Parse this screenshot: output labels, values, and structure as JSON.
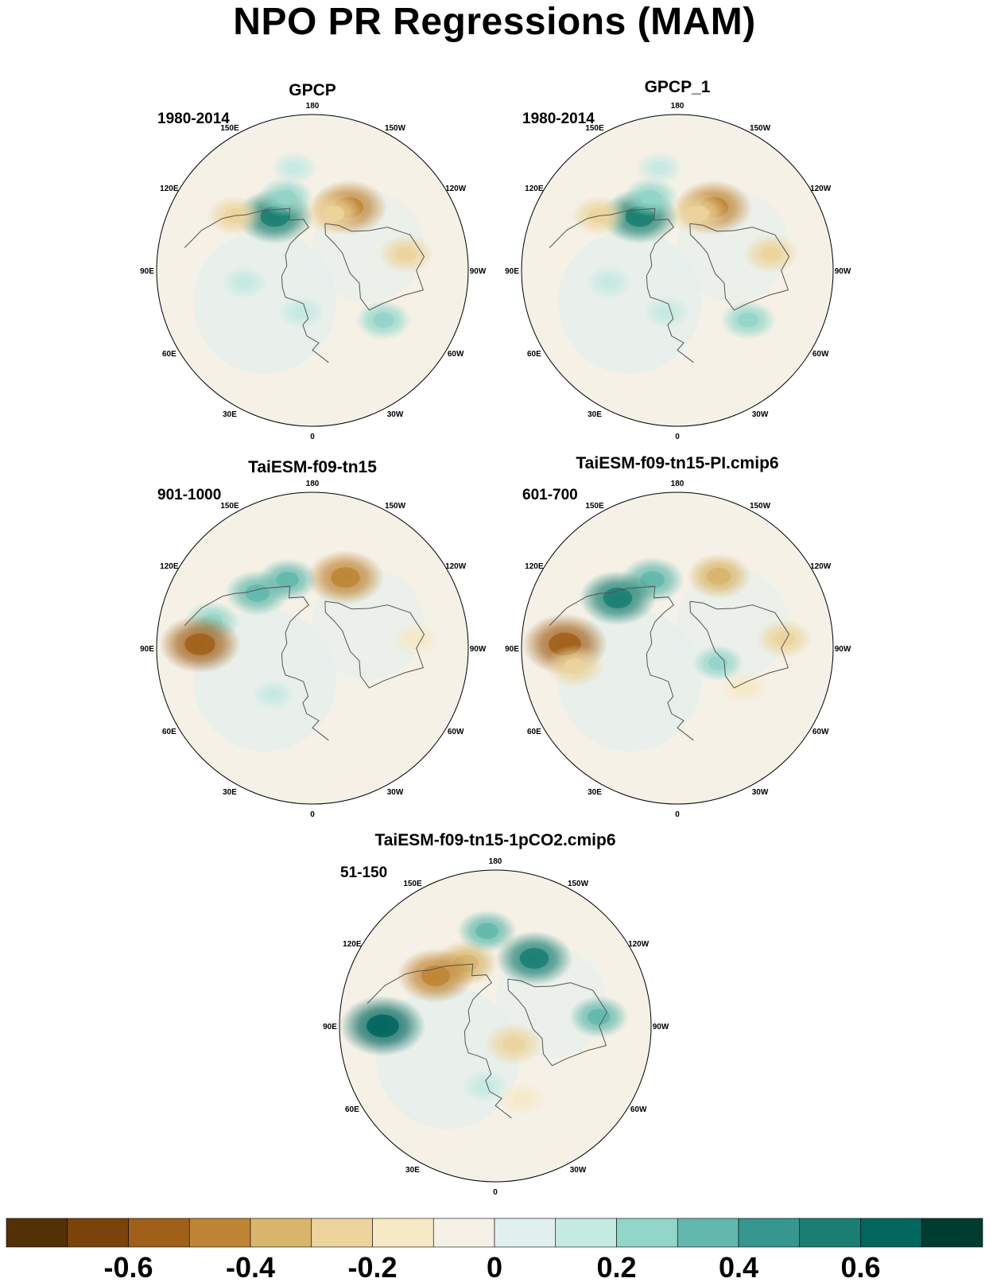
{
  "title": "NPO PR Regressions (MAM)",
  "chart_data": {
    "type": "heatmap",
    "projection": "north polar stereographic",
    "variable": "PR",
    "season": "MAM",
    "longitude_labels": [
      "180",
      "150E",
      "120E",
      "90E",
      "60E",
      "30E",
      "0",
      "30W",
      "60W",
      "90W",
      "120W",
      "150W"
    ],
    "panels": [
      {
        "title": "GPCP",
        "period": "1980-2014",
        "features": [
          {
            "lon": -150,
            "lat": 48,
            "value": -0.5
          },
          {
            "lon": -160,
            "lat": 55,
            "value": -0.3
          },
          {
            "lon": 145,
            "lat": 52,
            "value": 0.5
          },
          {
            "lon": 160,
            "lat": 45,
            "value": 0.25
          },
          {
            "lon": 170,
            "lat": 30,
            "value": 0.15
          },
          {
            "lon": 125,
            "lat": 35,
            "value": -0.25
          },
          {
            "lon": -100,
            "lat": 35,
            "value": -0.25
          },
          {
            "lon": -55,
            "lat": 40,
            "value": 0.25
          },
          {
            "lon": 15,
            "lat": 65,
            "value": 0.15
          },
          {
            "lon": 80,
            "lat": 50,
            "value": 0.15
          }
        ]
      },
      {
        "title": "GPCP_1",
        "period": "1980-2014",
        "features": [
          {
            "lon": -150,
            "lat": 48,
            "value": -0.5
          },
          {
            "lon": -160,
            "lat": 55,
            "value": -0.3
          },
          {
            "lon": 145,
            "lat": 52,
            "value": 0.5
          },
          {
            "lon": 160,
            "lat": 45,
            "value": 0.25
          },
          {
            "lon": 170,
            "lat": 30,
            "value": 0.15
          },
          {
            "lon": 125,
            "lat": 35,
            "value": -0.25
          },
          {
            "lon": -100,
            "lat": 35,
            "value": -0.25
          },
          {
            "lon": -55,
            "lat": 40,
            "value": 0.25
          },
          {
            "lon": 15,
            "lat": 65,
            "value": 0.15
          },
          {
            "lon": 80,
            "lat": 50,
            "value": 0.15
          }
        ]
      },
      {
        "title": "TaiESM-f09-tn15",
        "period": "901-1000",
        "features": [
          {
            "lon": -155,
            "lat": 45,
            "value": -0.5
          },
          {
            "lon": 160,
            "lat": 48,
            "value": 0.3
          },
          {
            "lon": 135,
            "lat": 45,
            "value": 0.35
          },
          {
            "lon": 105,
            "lat": 30,
            "value": 0.25
          },
          {
            "lon": 92,
            "lat": 25,
            "value": -0.55
          },
          {
            "lon": -95,
            "lat": 30,
            "value": -0.15
          },
          {
            "lon": -60,
            "lat": 40,
            "value": -0.1
          },
          {
            "lon": 40,
            "lat": 55,
            "value": 0.1
          }
        ]
      },
      {
        "title": "TaiESM-f09-tn15-PI.cmip6",
        "period": "601-700",
        "features": [
          {
            "lon": -150,
            "lat": 42,
            "value": -0.35
          },
          {
            "lon": 160,
            "lat": 48,
            "value": 0.35
          },
          {
            "lon": 130,
            "lat": 45,
            "value": 0.5
          },
          {
            "lon": 92,
            "lat": 25,
            "value": -0.6
          },
          {
            "lon": 80,
            "lat": 30,
            "value": -0.3
          },
          {
            "lon": -95,
            "lat": 28,
            "value": -0.25
          },
          {
            "lon": -60,
            "lat": 45,
            "value": -0.15
          },
          {
            "lon": -70,
            "lat": 65,
            "value": 0.2
          }
        ]
      },
      {
        "title": "TaiESM-f09-tn15-1pCO2.cmip6",
        "period": "51-150",
        "features": [
          {
            "lon": -150,
            "lat": 45,
            "value": 0.5
          },
          {
            "lon": 155,
            "lat": 50,
            "value": -0.35
          },
          {
            "lon": 130,
            "lat": 45,
            "value": -0.5
          },
          {
            "lon": 175,
            "lat": 35,
            "value": 0.3
          },
          {
            "lon": 90,
            "lat": 25,
            "value": 0.6
          },
          {
            "lon": -95,
            "lat": 30,
            "value": 0.3
          },
          {
            "lon": -45,
            "lat": 75,
            "value": -0.3
          },
          {
            "lon": 10,
            "lat": 55,
            "value": 0.15
          },
          {
            "lon": -20,
            "lat": 45,
            "value": -0.15
          }
        ]
      }
    ],
    "colorbar": {
      "levels": [
        -0.7,
        -0.6,
        -0.5,
        -0.4,
        -0.3,
        -0.2,
        -0.1,
        0,
        0.1,
        0.2,
        0.3,
        0.4,
        0.5,
        0.6,
        0.7
      ],
      "tick_labels": [
        "-0.6",
        "-0.4",
        "-0.2",
        "0",
        "0.2",
        "0.4",
        "0.6"
      ],
      "colors": [
        "#543005",
        "#7a430a",
        "#a0601a",
        "#bf8535",
        "#d8b56a",
        "#ecd49c",
        "#f6e9c6",
        "#f5f1e7",
        "#e1f0ee",
        "#c5eae2",
        "#92d5c9",
        "#62b8ac",
        "#35978f",
        "#1a7f72",
        "#01665e",
        "#003c30"
      ]
    }
  }
}
